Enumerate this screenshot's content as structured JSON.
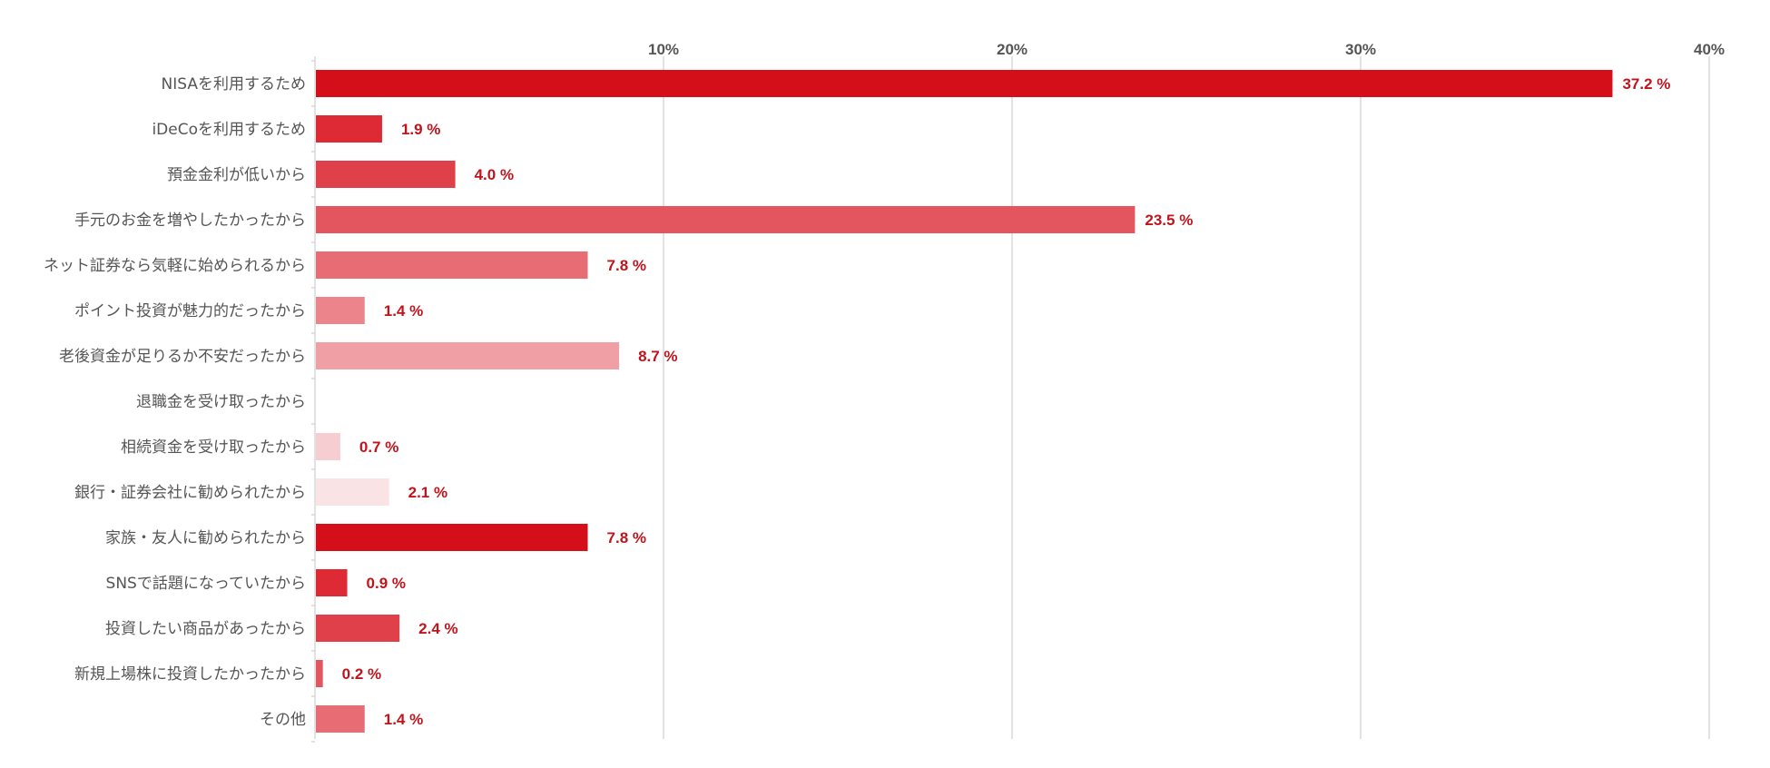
{
  "chart_data": {
    "type": "bar",
    "orientation": "horizontal",
    "title": "",
    "xlabel": "",
    "ylabel": "",
    "xlim": [
      0,
      40
    ],
    "x_ticks": [
      10,
      20,
      30,
      40
    ],
    "x_tick_labels": [
      "10%",
      "20%",
      "30%",
      "40%"
    ],
    "x_axis_position": "top",
    "grid": true,
    "legend": "none",
    "value_suffix": " %",
    "label_color": "#c0141c",
    "categories": [
      "NISAを利用するため",
      "iDeCoを利用するため",
      "預金金利が低いから",
      "手元のお金を増やしたかったから",
      "ネット証券なら気軽に始められるから",
      "ポイント投資が魅力的だったから",
      "老後資金が足りるか不安だったから",
      "退職金を受け取ったから",
      "相続資金を受け取ったから",
      "銀行・証券会社に勧められたから",
      "家族・友人に勧められたから",
      "SNSで話題になっていたから",
      "投資したい商品があったから",
      "新規上場株に投資したかったから",
      "その他"
    ],
    "values": [
      37.2,
      1.9,
      4.0,
      23.5,
      7.8,
      1.4,
      8.7,
      null,
      0.7,
      2.1,
      7.8,
      0.9,
      2.4,
      0.2,
      1.4
    ],
    "value_labels": [
      "37.2 %",
      "1.9 %",
      "4.0 %",
      "23.5 %",
      "7.8 %",
      "1.4 %",
      "8.7 %",
      "",
      "0.7 %",
      "2.1 %",
      "7.8 %",
      "0.9 %",
      "2.4 %",
      "0.2 %",
      "1.4 %"
    ],
    "bar_colors": [
      "#d50f1a",
      "#de2a35",
      "#e0404a",
      "#e35660",
      "#e86c74",
      "#ec858b",
      "#f0a0a5",
      "#f3b8bc",
      "#f6cdd0",
      "#f9e3e4",
      "#d50f1a",
      "#de2a35",
      "#e0404a",
      "#e35660",
      "#e86c74"
    ]
  }
}
